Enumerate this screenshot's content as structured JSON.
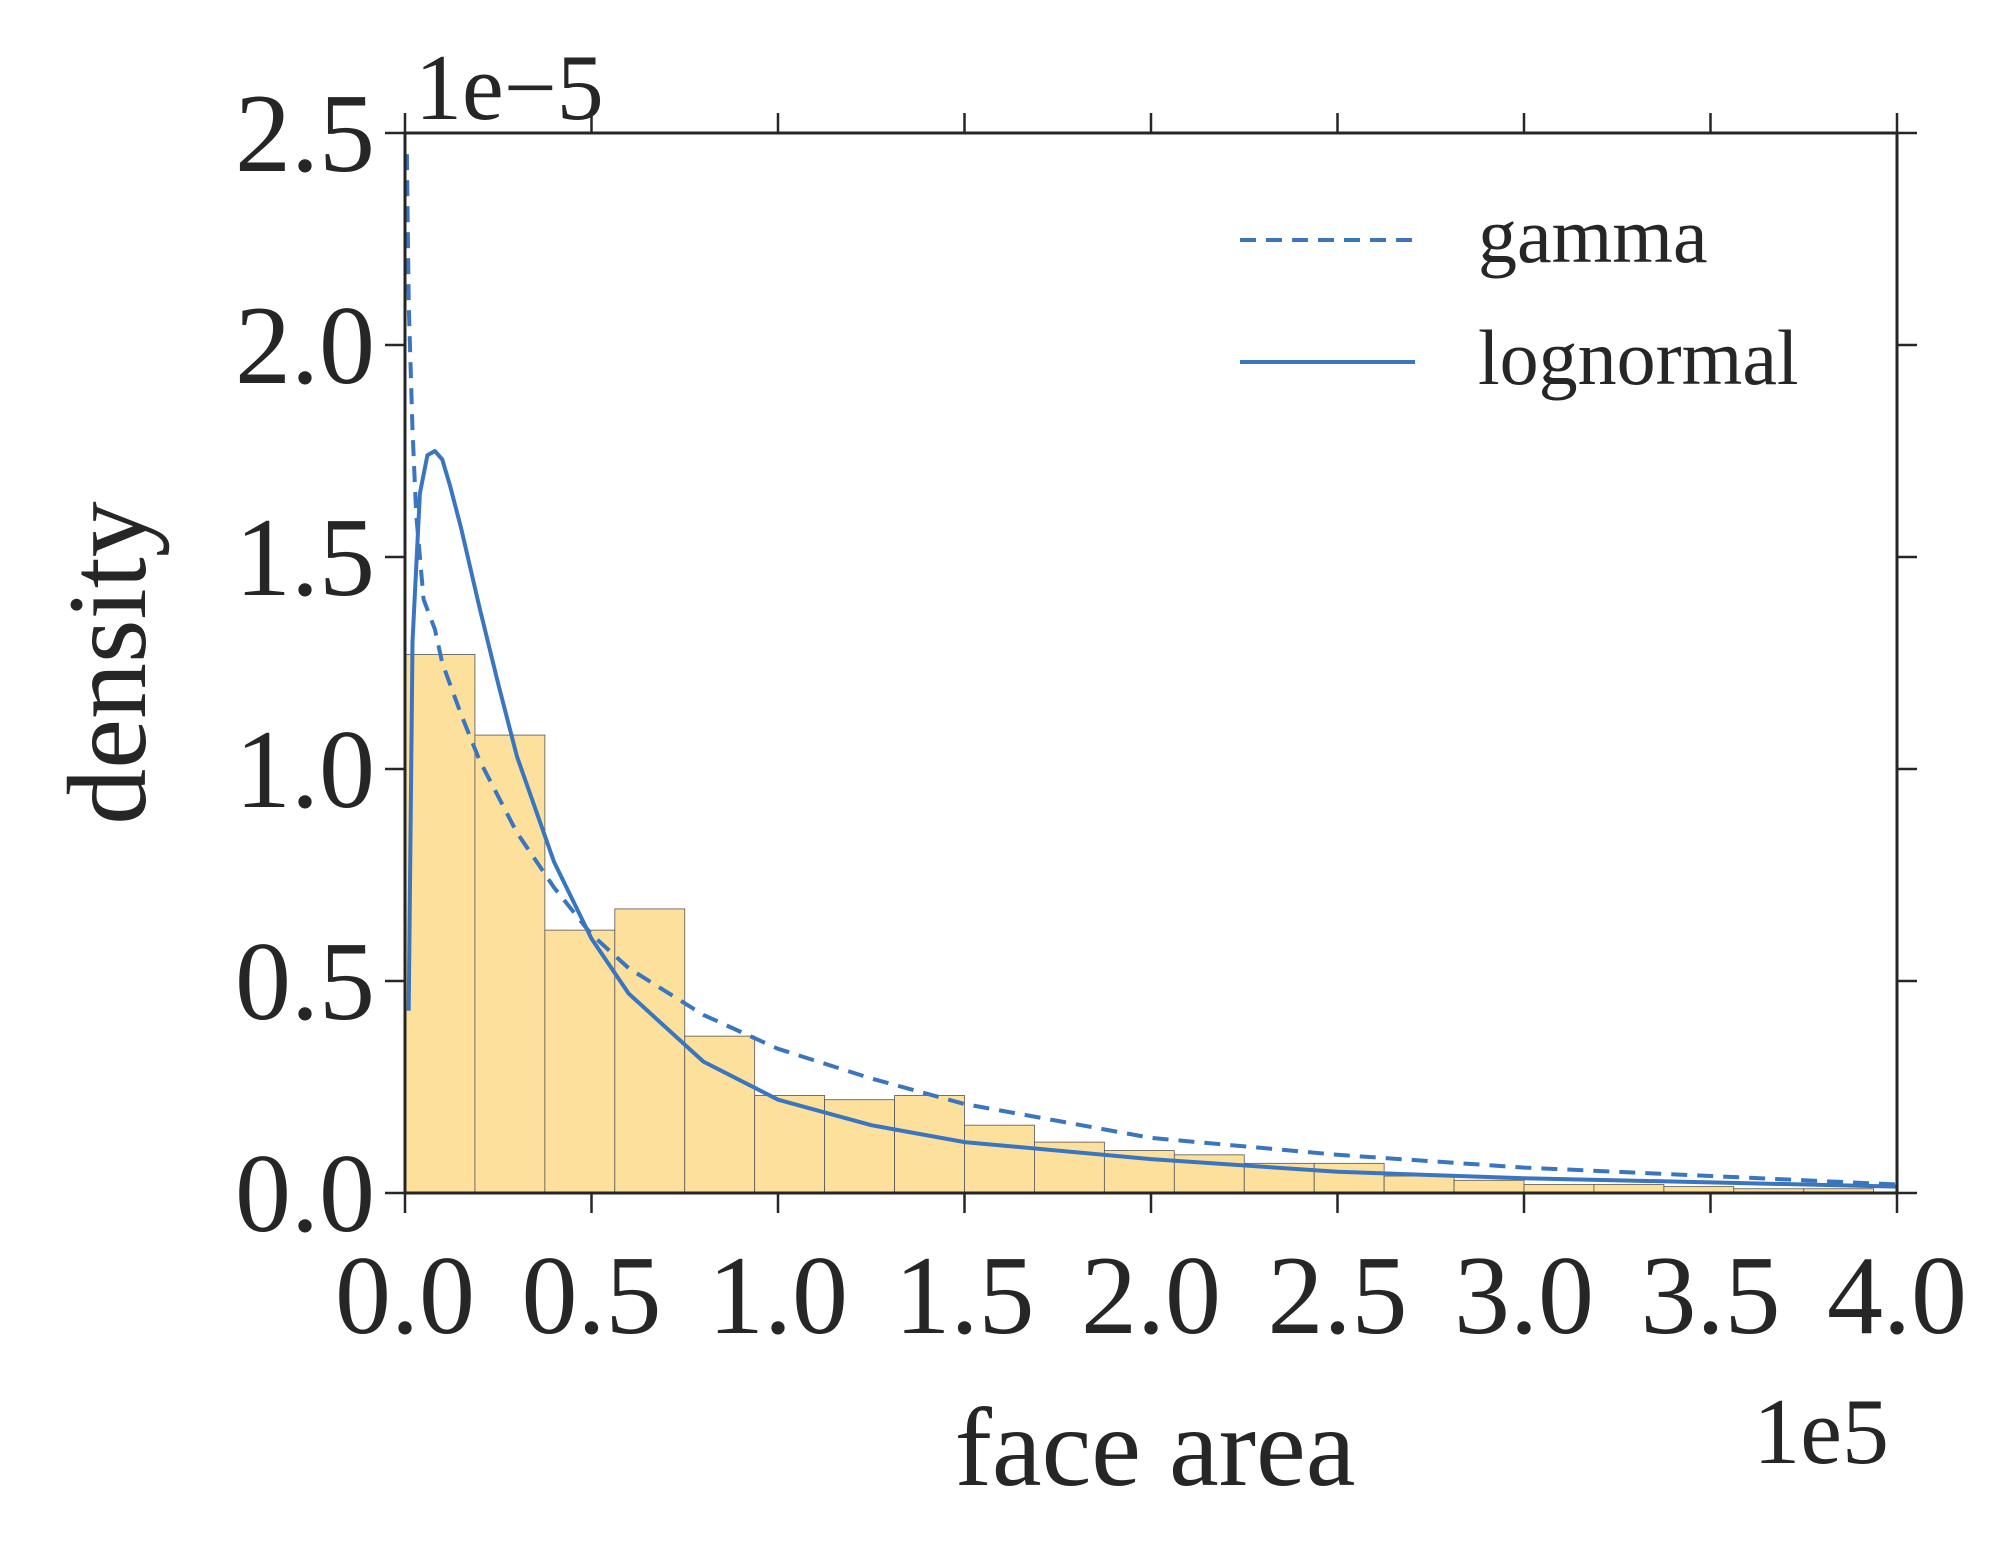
{
  "chart_data": {
    "type": "bar",
    "xlabel": "face area",
    "ylabel": "density",
    "x_multiplier": "1e5",
    "y_multiplier": "1e−5",
    "x_ticks": [
      "0.0",
      "0.5",
      "1.0",
      "1.5",
      "2.0",
      "2.5",
      "3.0",
      "3.5",
      "4.0"
    ],
    "y_ticks": [
      "0.0",
      "0.5",
      "1.0",
      "1.5",
      "2.0",
      "2.5"
    ],
    "xlim": [
      0,
      4.0
    ],
    "ylim": [
      0,
      2.5
    ],
    "x_unit_note": "x values in units of 1e5, y values in units of 1e-5",
    "histogram": {
      "bin_width": 0.1875,
      "bin_starts": [
        0.0,
        0.1875,
        0.375,
        0.5625,
        0.75,
        0.9375,
        1.125,
        1.3125,
        1.5,
        1.6875,
        1.875,
        2.0625,
        2.25,
        2.4375,
        2.625,
        2.8125,
        3.0,
        3.1875,
        3.375,
        3.5625,
        3.75
      ],
      "values": [
        1.27,
        1.08,
        0.62,
        0.67,
        0.37,
        0.23,
        0.22,
        0.23,
        0.16,
        0.12,
        0.1,
        0.09,
        0.07,
        0.07,
        0.04,
        0.03,
        0.02,
        0.02,
        0.015,
        0.01,
        0.01
      ],
      "color": "#fde09c",
      "edge_color": "#555555"
    },
    "series": [
      {
        "name": "gamma",
        "style": "dashed",
        "color": "#3a75c0",
        "x": [
          0.005,
          0.01,
          0.02,
          0.03,
          0.05,
          0.08,
          0.1,
          0.15,
          0.2,
          0.3,
          0.4,
          0.5,
          0.6,
          0.8,
          1.0,
          1.25,
          1.5,
          1.75,
          2.0,
          2.5,
          3.0,
          3.5,
          4.0
        ],
        "y": [
          2.45,
          2.1,
          1.8,
          1.6,
          1.4,
          1.33,
          1.25,
          1.13,
          1.02,
          0.85,
          0.72,
          0.61,
          0.53,
          0.42,
          0.34,
          0.27,
          0.21,
          0.17,
          0.13,
          0.09,
          0.06,
          0.04,
          0.02
        ]
      },
      {
        "name": "lognormal",
        "style": "solid",
        "color": "#3a75c0",
        "x": [
          0.01,
          0.02,
          0.04,
          0.06,
          0.08,
          0.1,
          0.12,
          0.15,
          0.2,
          0.25,
          0.3,
          0.4,
          0.5,
          0.6,
          0.8,
          1.0,
          1.25,
          1.5,
          2.0,
          2.5,
          3.0,
          3.5,
          4.0
        ],
        "y": [
          0.43,
          1.3,
          1.65,
          1.74,
          1.75,
          1.73,
          1.67,
          1.57,
          1.38,
          1.2,
          1.03,
          0.78,
          0.6,
          0.47,
          0.31,
          0.22,
          0.16,
          0.12,
          0.08,
          0.05,
          0.035,
          0.025,
          0.015
        ]
      }
    ],
    "legend_position": "top-right",
    "grid": false
  }
}
